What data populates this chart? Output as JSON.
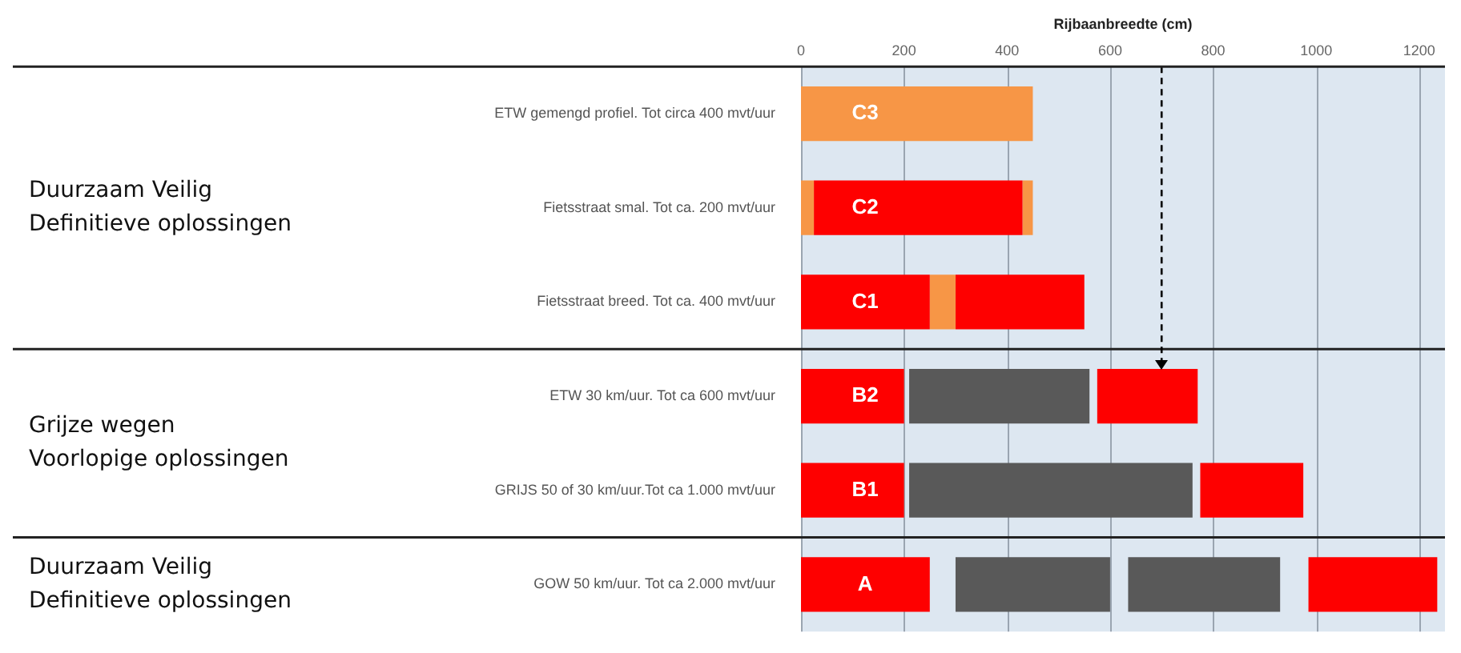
{
  "chart_data": {
    "type": "bar",
    "orientation": "horizontal",
    "xlabel": "Rijbaanbreedte (cm)",
    "categories": [
      "ETW gemengd profiel. Tot circa 400 mvt/uur",
      "Fietsstraat smal. Tot ca. 200 mvt/uur",
      "Fietsstraat breed. Tot ca. 400 mvt/uur",
      "ETW 30 km/uur. Tot ca 600 mvt/uur",
      "GRIJS 50 of 30 km/uur.Tot ca 1.000 mvt/uur",
      "GOW 50 km/uur. Tot ca 2.000 mvt/uur"
    ],
    "series": [
      {
        "base": [
          0,
          0,
          0,
          0,
          0,
          0
        ],
        "values": [
          450,
          25,
          250,
          200,
          200,
          250
        ],
        "colors": [
          "#f79646",
          "#f79646",
          "#fe0000",
          "#fe0000",
          "#fe0000",
          "#fe0000"
        ]
      },
      {
        "base": [
          null,
          25,
          250,
          210,
          210,
          300
        ],
        "values": [
          null,
          405,
          50,
          350,
          550,
          300
        ],
        "colors": [
          "#f79646",
          "#fe0000",
          "#f79646",
          "#595959",
          "#595959",
          "#595959"
        ]
      },
      {
        "base": [
          null,
          430,
          300,
          575,
          775,
          635
        ],
        "values": [
          null,
          20,
          250,
          195,
          200,
          295
        ],
        "colors": [
          "#f79646",
          "#f79646",
          "#fe0000",
          "#fe0000",
          "#fe0000",
          "#595959"
        ]
      },
      {
        "base": [
          null,
          null,
          null,
          null,
          null,
          985
        ],
        "values": [
          null,
          null,
          null,
          null,
          null,
          250
        ],
        "colors": [
          "#fe0000",
          "#fe0000",
          "#fe0000",
          "#fe0000",
          "#fe0000",
          "#fe0000"
        ]
      }
    ],
    "xlim": [
      0,
      1250
    ],
    "xticks": [
      0,
      200,
      400,
      600,
      800,
      1000,
      1200
    ],
    "grid": "x",
    "ref_lines": [
      {
        "axis": "x",
        "value": 700,
        "color": "#000000",
        "line_style": "dashed"
      }
    ],
    "annotations": [
      "Duurzaam Veilig\nDefinitieve oplossingen",
      "Grijze wegen\nVoorlopige oplossingen",
      "Duurzaam Veilig\nDefinitieve oplossingen",
      "C3",
      "C2",
      "C1",
      "B2",
      "B1",
      "A"
    ]
  }
}
